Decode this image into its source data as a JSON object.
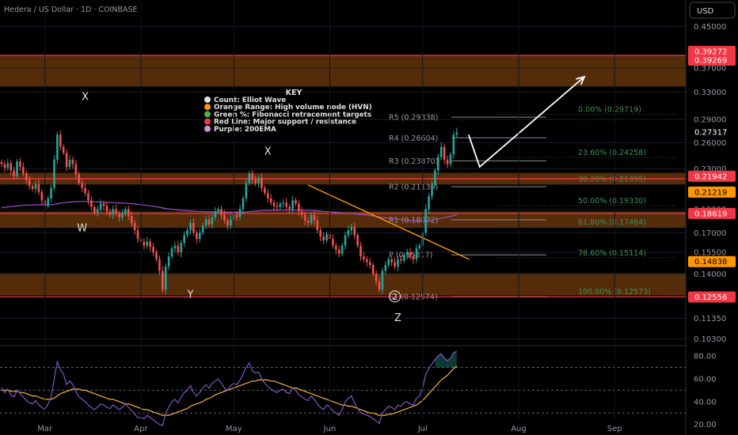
{
  "header": {
    "title": "Hedera / US Dollar · 1D · COINBASE"
  },
  "currency_button": {
    "label": "USD"
  },
  "colors": {
    "bg": "#000000",
    "up": "#26a69a",
    "down": "#ef5350",
    "hvn_fill": "#5a2e0a",
    "red_line": "#f23645",
    "ema": "#9c4fc2",
    "trendline": "#ff9800",
    "fib_text": "#3f8f5a",
    "pivot_text": "#9598a1",
    "rsi": "#7e57c2",
    "rsi_ma": "#f5b437"
  },
  "key": {
    "title": "KEY",
    "items": [
      {
        "text": "Count: Elliot Wave",
        "color": "#e0e0e0"
      },
      {
        "text": "Orange Range: High volume node (HVN)",
        "color": "#ff9800"
      },
      {
        "text": "Green %: Fibonacci retracement targets",
        "color": "#4caf50"
      },
      {
        "text": "Red Line: Major support / resistance",
        "color": "#f23645"
      },
      {
        "text": "Purple: 200EMA",
        "color": "#ce93d8"
      }
    ]
  },
  "chart_data": [
    {
      "type": "candlestick",
      "title": "Hedera / US Dollar · 1D · COINBASE",
      "currency": "USD",
      "y_axis_ticks": [
        0.45,
        0.37,
        0.33,
        0.29,
        0.26,
        0.23,
        0.19,
        0.17,
        0.155,
        0.14,
        0.1135,
        0.103
      ],
      "y_axis_tick_labels": [
        "0.45000",
        "0.37000",
        "0.33000",
        "0.29000",
        "0.26000",
        "0.23000",
        "0.19000",
        "0.17000",
        "0.15500",
        "0.14000",
        "0.11350",
        "0.10300"
      ],
      "x_axis_labels": [
        "Mar",
        "Apr",
        "May",
        "Jun",
        "Jul",
        "Aug",
        "Sep"
      ],
      "price_badges": [
        {
          "label": "0.39272",
          "kind": "red"
        },
        {
          "label": "0.39269",
          "kind": "red"
        },
        {
          "label": "0.27317",
          "kind": "current"
        },
        {
          "label": "0.21942",
          "kind": "red"
        },
        {
          "label": "0.21219",
          "kind": "orange"
        },
        {
          "label": "0.18619",
          "kind": "red"
        },
        {
          "label": "0.14838",
          "kind": "orange"
        },
        {
          "label": "0.12556",
          "kind": "red"
        }
      ],
      "hvn_zones": [
        [
          0.339,
          0.393
        ],
        [
          0.2135,
          0.2255
        ],
        [
          0.174,
          0.188
        ],
        [
          0.1265,
          0.1405
        ]
      ],
      "support_resistance": [
        0.3927,
        0.2194,
        0.1862,
        0.1256
      ],
      "fib_levels": [
        {
          "label": "0.00% (0.29719)",
          "value": 0.29719
        },
        {
          "label": "23.60% (0.24258)",
          "value": 0.24258
        },
        {
          "label": "38.20% (0.21395)",
          "value": 0.21395
        },
        {
          "label": "50.00% (0.19330)",
          "value": 0.1933
        },
        {
          "label": "61.80% (0.17464)",
          "value": 0.17464
        },
        {
          "label": "78.60% (0.15114)",
          "value": 0.15114
        },
        {
          "label": "100.00% (0.12573)",
          "value": 0.12573
        }
      ],
      "pivots": [
        {
          "label": "R5 (0.29338)",
          "value": 0.29338
        },
        {
          "label": "R4 (0.26604)",
          "value": 0.26604
        },
        {
          "label": "R3 (0.23870)",
          "value": 0.2387
        },
        {
          "label": "R2 (0.21135)",
          "value": 0.21135
        },
        {
          "label": "R1 (0.18072)",
          "value": 0.18072
        },
        {
          "label": "P (0.15317)",
          "value": 0.15317
        },
        {
          "label": "S1 (0.12574)",
          "value": 0.12574
        }
      ],
      "wave_labels": [
        {
          "text": "X",
          "date": "Feb 28",
          "price": 0.318
        },
        {
          "text": "W",
          "date": "Feb 27",
          "price": 0.171
        },
        {
          "text": "Y",
          "date": "Apr 17",
          "price": 0.125
        },
        {
          "text": "X",
          "date": "May 12",
          "price": 0.246
        },
        {
          "text": "2",
          "date": "Jun 22",
          "price": 0.124
        },
        {
          "text": "Z",
          "date": "Jun 23",
          "price": 0.112
        }
      ],
      "closes": [
        0.235,
        0.231,
        0.236,
        0.228,
        0.222,
        0.238,
        0.232,
        0.225,
        0.218,
        0.212,
        0.209,
        0.214,
        0.206,
        0.198,
        0.193,
        0.2,
        0.21,
        0.24,
        0.27,
        0.255,
        0.248,
        0.232,
        0.24,
        0.235,
        0.224,
        0.215,
        0.21,
        0.205,
        0.198,
        0.192,
        0.187,
        0.19,
        0.195,
        0.193,
        0.188,
        0.185,
        0.19,
        0.186,
        0.183,
        0.186,
        0.19,
        0.184,
        0.178,
        0.172,
        0.165,
        0.163,
        0.16,
        0.163,
        0.159,
        0.155,
        0.15,
        0.142,
        0.13,
        0.145,
        0.152,
        0.158,
        0.16,
        0.155,
        0.162,
        0.168,
        0.172,
        0.178,
        0.17,
        0.165,
        0.17,
        0.176,
        0.181,
        0.177,
        0.183,
        0.188,
        0.19,
        0.185,
        0.18,
        0.176,
        0.181,
        0.185,
        0.183,
        0.19,
        0.2,
        0.215,
        0.225,
        0.218,
        0.215,
        0.22,
        0.21,
        0.205,
        0.2,
        0.196,
        0.193,
        0.192,
        0.195,
        0.196,
        0.192,
        0.19,
        0.198,
        0.195,
        0.188,
        0.185,
        0.18,
        0.178,
        0.185,
        0.18,
        0.172,
        0.167,
        0.164,
        0.169,
        0.165,
        0.16,
        0.157,
        0.154,
        0.16,
        0.168,
        0.172,
        0.175,
        0.168,
        0.16,
        0.152,
        0.15,
        0.148,
        0.146,
        0.14,
        0.135,
        0.13,
        0.142,
        0.146,
        0.15,
        0.148,
        0.145,
        0.15,
        0.149,
        0.153,
        0.155,
        0.152,
        0.15,
        0.158,
        0.16,
        0.17,
        0.19,
        0.202,
        0.213,
        0.228,
        0.243,
        0.255,
        0.24,
        0.235,
        0.246,
        0.27,
        0.273
      ]
    },
    {
      "type": "line",
      "title": "RSI",
      "y_axis_ticks": [
        80,
        60,
        40,
        20
      ],
      "y_axis_tick_labels": [
        "80.00",
        "60.00",
        "40.00",
        "20.00"
      ],
      "ylim": [
        17,
        87
      ],
      "levels": [
        70,
        50,
        30
      ],
      "rsi": [
        52,
        48,
        51,
        46,
        44,
        50,
        47,
        44,
        41,
        39,
        38,
        41,
        37,
        35,
        33,
        38,
        44,
        60,
        75,
        68,
        64,
        55,
        58,
        55,
        49,
        44,
        42,
        40,
        37,
        35,
        33,
        35,
        38,
        37,
        35,
        34,
        37,
        35,
        33,
        35,
        38,
        35,
        32,
        29,
        26,
        26,
        25,
        28,
        26,
        24,
        22,
        20,
        19,
        30,
        35,
        40,
        42,
        39,
        44,
        48,
        50,
        54,
        48,
        45,
        48,
        52,
        55,
        52,
        56,
        58,
        60,
        56,
        52,
        50,
        54,
        56,
        55,
        59,
        64,
        70,
        74,
        67,
        65,
        66,
        60,
        56,
        53,
        51,
        49,
        48,
        50,
        51,
        48,
        47,
        52,
        50,
        46,
        44,
        42,
        41,
        45,
        42,
        38,
        35,
        33,
        37,
        35,
        32,
        30,
        28,
        33,
        40,
        43,
        45,
        39,
        34,
        30,
        29,
        28,
        27,
        25,
        23,
        21,
        30,
        33,
        36,
        35,
        33,
        37,
        36,
        39,
        40,
        38,
        37,
        43,
        45,
        52,
        64,
        69,
        73,
        77,
        80,
        82,
        78,
        76,
        78,
        83,
        84
      ],
      "rsi_ma": [
        50,
        50,
        50,
        49,
        49,
        49,
        48,
        48,
        47,
        46,
        45,
        45,
        44,
        43,
        42,
        42,
        42,
        43,
        45,
        47,
        48,
        49,
        50,
        51,
        51,
        51,
        50,
        50,
        49,
        48,
        47,
        46,
        45,
        44,
        43,
        42,
        42,
        41,
        40,
        39,
        38,
        38,
        37,
        36,
        35,
        34,
        33,
        33,
        32,
        31,
        30,
        29,
        28,
        28,
        28,
        29,
        30,
        31,
        32,
        33,
        34,
        36,
        37,
        38,
        39,
        40,
        42,
        43,
        44,
        46,
        47,
        48,
        49,
        50,
        51,
        52,
        53,
        54,
        55,
        56,
        57,
        58,
        58,
        59,
        59,
        59,
        59,
        58,
        58,
        57,
        56,
        55,
        54,
        53,
        52,
        52,
        51,
        50,
        49,
        48,
        47,
        46,
        45,
        44,
        43,
        42,
        41,
        40,
        39,
        38,
        37,
        37,
        36,
        36,
        35,
        34,
        33,
        32,
        31,
        30,
        30,
        29,
        28,
        28,
        28,
        29,
        29,
        30,
        31,
        32,
        33,
        34,
        35,
        36,
        37,
        39,
        41,
        44,
        47,
        50,
        53,
        56,
        59,
        61,
        63,
        66,
        69,
        71
      ]
    }
  ]
}
